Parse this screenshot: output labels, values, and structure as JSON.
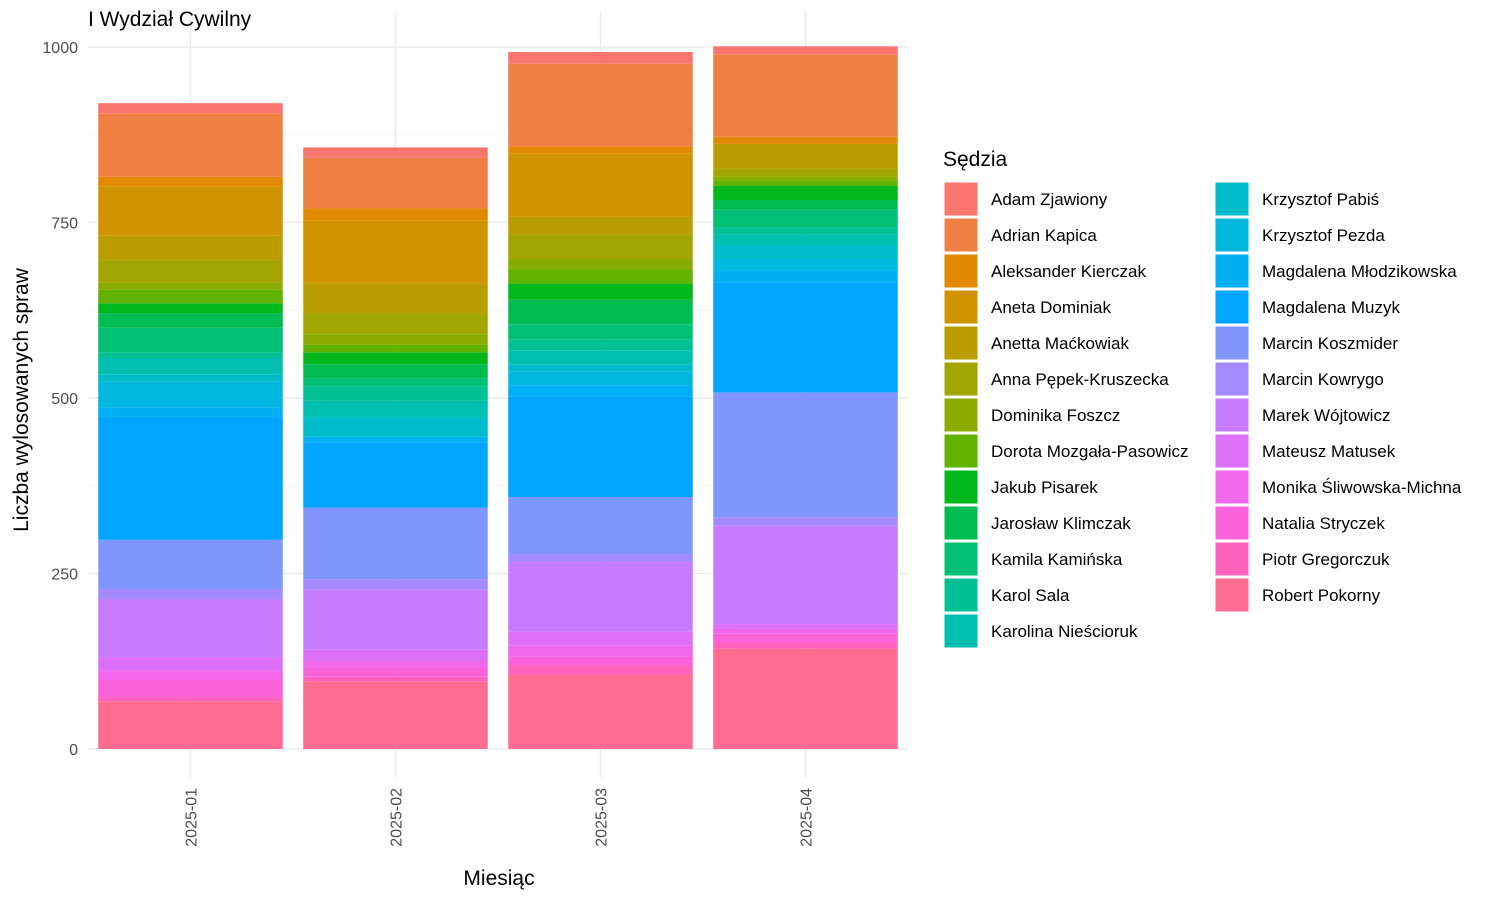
{
  "chart_data": {
    "type": "bar",
    "stacked": true,
    "title": "I Wydział Cywilny",
    "xlabel": "Miesiąc",
    "ylabel": "Liczba wylosowanych spraw",
    "ylim": [
      0,
      1000
    ],
    "yticks": [
      0,
      250,
      500,
      750,
      1000
    ],
    "grid": true,
    "legend_title": "Sędzia",
    "legend_position": "right",
    "categories": [
      "2025-01",
      "2025-02",
      "2025-03",
      "2025-04"
    ],
    "series": [
      {
        "name": "Adam Zjawiony",
        "color": "#F8766D",
        "values": [
          15,
          15,
          17,
          12
        ]
      },
      {
        "name": "Adrian Kapica",
        "color": "#EE8044",
        "values": [
          90,
          72,
          118,
          117
        ]
      },
      {
        "name": "Aleksander Kierczak",
        "color": "#E18A00",
        "values": [
          14,
          17,
          10,
          10
        ]
      },
      {
        "name": "Aneta Dominiak",
        "color": "#D09400",
        "values": [
          70,
          90,
          90,
          0
        ]
      },
      {
        "name": "Anetta Maćkowiak",
        "color": "#BA9E00",
        "values": [
          35,
          42,
          25,
          35
        ]
      },
      {
        "name": "Anna Pępek-Kruszecka",
        "color": "#A3A500",
        "values": [
          32,
          30,
          35,
          12
        ]
      },
      {
        "name": "Dominika Foszcz",
        "color": "#88AC00",
        "values": [
          10,
          15,
          15,
          5
        ]
      },
      {
        "name": "Dorota Mozgała-Pasowicz",
        "color": "#62B200",
        "values": [
          19,
          11,
          20,
          8
        ]
      },
      {
        "name": "Jakub Pisarek",
        "color": "#00B81C",
        "values": [
          14,
          17,
          23,
          20
        ]
      },
      {
        "name": "Jarosław Klimczak",
        "color": "#00BC51",
        "values": [
          21,
          20,
          35,
          14
        ]
      },
      {
        "name": "Kamila Kamińska",
        "color": "#00C075",
        "values": [
          35,
          12,
          22,
          25
        ]
      },
      {
        "name": "Karol Sala",
        "color": "#00C094",
        "values": [
          8,
          20,
          15,
          10
        ]
      },
      {
        "name": "Karolina Nieścioruk",
        "color": "#00BFB1",
        "values": [
          24,
          23,
          20,
          15
        ]
      },
      {
        "name": "Krzysztof Pabiś",
        "color": "#00BCCA",
        "values": [
          10,
          28,
          10,
          20
        ]
      },
      {
        "name": "Krzysztof Pezda",
        "color": "#00B7E0",
        "values": [
          36,
          0,
          20,
          17
        ]
      },
      {
        "name": "Magdalena Młodzikowska",
        "color": "#00B0F4",
        "values": [
          14,
          8,
          16,
          16
        ]
      },
      {
        "name": "Magdalena Muzyk",
        "color": "#00A5FF",
        "values": [
          175,
          93,
          143,
          157
        ]
      },
      {
        "name": "Marcin Koszmider",
        "color": "#7F96FF",
        "values": [
          70,
          102,
          82,
          178
        ]
      },
      {
        "name": "Marcin Kowrygo",
        "color": "#A58AFF",
        "values": [
          15,
          15,
          10,
          12
        ]
      },
      {
        "name": "Marek Wójtowicz",
        "color": "#C77CFF",
        "values": [
          82,
          85,
          100,
          140
        ]
      },
      {
        "name": "Mateusz Matusek",
        "color": "#DE70F8",
        "values": [
          20,
          16,
          20,
          7
        ]
      },
      {
        "name": "Monika Śliwowska-Michna",
        "color": "#EF67EB",
        "values": [
          12,
          10,
          15,
          7
        ]
      },
      {
        "name": "Natalia Stryczek",
        "color": "#FA62DB",
        "values": [
          25,
          13,
          13,
          13
        ]
      },
      {
        "name": "Piotr Gregorczuk",
        "color": "#FF62BC",
        "values": [
          6,
          7,
          13,
          8
        ]
      },
      {
        "name": "Robert Pokorny",
        "color": "#FF6C91",
        "values": [
          68,
          96,
          106,
          143
        ]
      }
    ]
  }
}
